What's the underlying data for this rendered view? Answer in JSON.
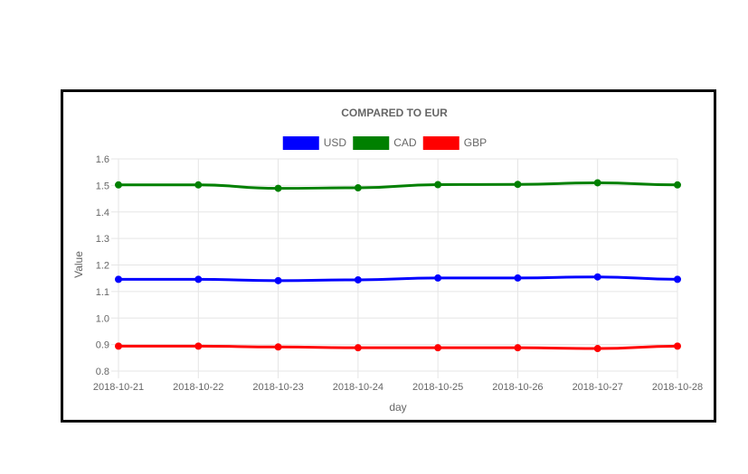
{
  "chart_data": {
    "type": "line",
    "title": "COMPARED TO EUR",
    "xlabel": "day",
    "ylabel": "Value",
    "categories": [
      "2018-10-21",
      "2018-10-22",
      "2018-10-23",
      "2018-10-24",
      "2018-10-25",
      "2018-10-26",
      "2018-10-27",
      "2018-10-28"
    ],
    "yticks": [
      "0.8",
      "0.9",
      "1.0",
      "1.1",
      "1.2",
      "1.3",
      "1.4",
      "1.5",
      "1.6"
    ],
    "ylim": [
      0.8,
      1.6
    ],
    "grid": true,
    "legend_position": "top",
    "series": [
      {
        "name": "USD",
        "color": "#0000ff",
        "values": [
          1.146,
          1.146,
          1.141,
          1.144,
          1.151,
          1.151,
          1.155,
          1.146
        ]
      },
      {
        "name": "CAD",
        "color": "#008000",
        "values": [
          1.502,
          1.502,
          1.489,
          1.491,
          1.503,
          1.504,
          1.51,
          1.502
        ]
      },
      {
        "name": "GBP",
        "color": "#ff0000",
        "values": [
          0.894,
          0.894,
          0.891,
          0.888,
          0.888,
          0.888,
          0.885,
          0.894
        ]
      }
    ]
  }
}
